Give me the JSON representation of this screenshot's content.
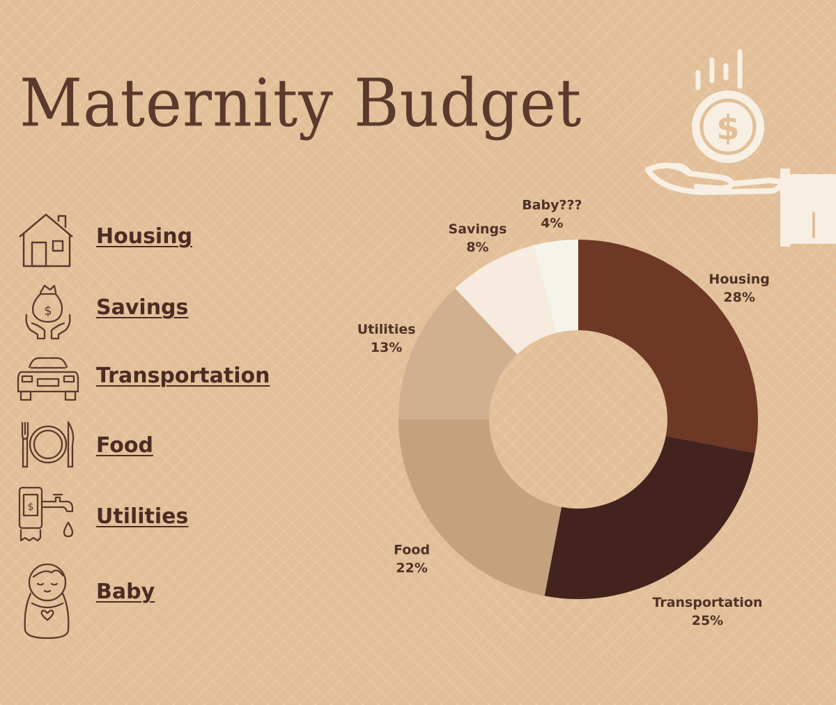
{
  "title": "Maternity Budget",
  "legend": [
    {
      "label": "Housing",
      "icon": "house-icon"
    },
    {
      "label": "Savings",
      "icon": "money-bag-hands-icon"
    },
    {
      "label": "Transportation",
      "icon": "car-icon"
    },
    {
      "label": "Food",
      "icon": "plate-utensils-icon"
    },
    {
      "label": "Utilities",
      "icon": "utilities-tap-icon"
    },
    {
      "label": "Baby",
      "icon": "swaddled-baby-icon"
    }
  ],
  "chart_data": {
    "type": "pie",
    "donut": true,
    "categories": [
      "Housing",
      "Transportation",
      "Food",
      "Utilities",
      "Savings",
      "Baby???"
    ],
    "values": [
      28,
      25,
      22,
      13,
      8,
      4
    ],
    "value_labels": [
      "28%",
      "25%",
      "22%",
      "13%",
      "8%",
      "4%"
    ],
    "colors": [
      "#6d3826",
      "#42231e",
      "#c4a27e",
      "#d1b090",
      "#f6ebde",
      "#f4f4ea"
    ],
    "start": "top, clockwise"
  },
  "colors": {
    "background": "#e2bf98",
    "text": "#4a2c22",
    "icon_stroke": "#5a3a2c",
    "hand_icon": "#f7efe2"
  },
  "decoration": {
    "icon": "hand-holding-dollar-coin-icon"
  }
}
